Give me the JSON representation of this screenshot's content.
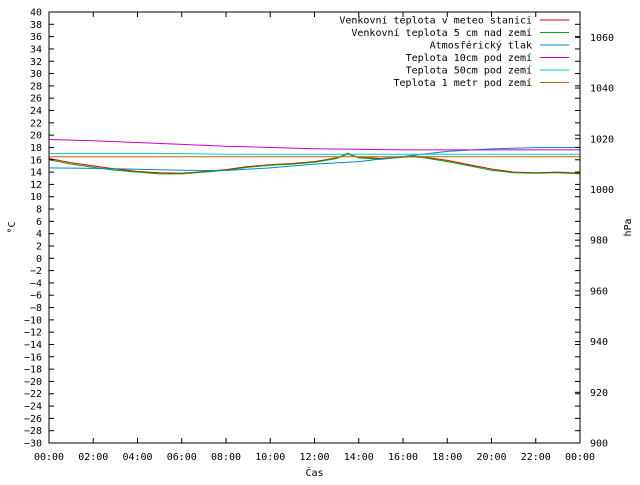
{
  "chart_data": {
    "type": "line",
    "title": "",
    "xlabel": "Čas",
    "ylabel": "°C",
    "y2label": "hPa",
    "grid": false,
    "legend_position": "top-right",
    "x_ticks": [
      "00:00",
      "02:00",
      "04:00",
      "06:00",
      "08:00",
      "10:00",
      "12:00",
      "14:00",
      "16:00",
      "18:00",
      "20:00",
      "22:00",
      "00:00"
    ],
    "x_range_hours": [
      0,
      24
    ],
    "ylim": [
      -30,
      40
    ],
    "y_ticks": [
      40,
      38,
      36,
      34,
      32,
      30,
      28,
      26,
      24,
      22,
      20,
      18,
      16,
      14,
      12,
      10,
      8,
      6,
      4,
      2,
      0,
      -2,
      -4,
      -6,
      -8,
      -10,
      -12,
      -14,
      -16,
      -18,
      -20,
      -22,
      -24,
      -26,
      -28,
      -30
    ],
    "y2lim": [
      900,
      1070
    ],
    "y2_ticks": [
      1060,
      1040,
      1020,
      1000,
      980,
      960,
      940,
      920,
      900
    ],
    "series": [
      {
        "name": "Venkovní teplota v meteo stanici",
        "axis": "y",
        "color": "#dd0000",
        "x": [
          0,
          1,
          2,
          3,
          4,
          5,
          6,
          7,
          8,
          9,
          10,
          11,
          12,
          13,
          13.5,
          14,
          15,
          16,
          16.5,
          17,
          18,
          19,
          20,
          21,
          22,
          23,
          24
        ],
        "y": [
          16.2,
          15.5,
          15.0,
          14.5,
          14.1,
          13.9,
          13.8,
          14.1,
          14.4,
          14.9,
          15.2,
          15.4,
          15.7,
          16.3,
          16.9,
          16.4,
          16.2,
          16.5,
          16.6,
          16.4,
          15.9,
          15.2,
          14.5,
          14.0,
          13.9,
          14.0,
          13.8
        ]
      },
      {
        "name": "Venkovní teplota 5 cm nad zemí",
        "axis": "y",
        "color": "#00aa00",
        "x": [
          0,
          1,
          2,
          3,
          4,
          5,
          6,
          7,
          8,
          9,
          10,
          11,
          12,
          13,
          13.5,
          14,
          15,
          16,
          16.5,
          17,
          18,
          19,
          20,
          21,
          22,
          23,
          24
        ],
        "y": [
          16.0,
          15.3,
          14.8,
          14.3,
          14.0,
          13.7,
          13.7,
          14.0,
          14.3,
          14.8,
          15.1,
          15.3,
          15.6,
          16.2,
          17.1,
          16.3,
          16.1,
          16.4,
          16.5,
          16.3,
          15.7,
          15.0,
          14.3,
          13.9,
          13.8,
          13.9,
          13.7
        ]
      },
      {
        "name": "Atmosférický tlak",
        "axis": "y2",
        "color": "#0088cc",
        "x": [
          0,
          2,
          4,
          6,
          8,
          10,
          12,
          14,
          16,
          18,
          20,
          22,
          24
        ],
        "y": [
          1008.5,
          1008.3,
          1008.0,
          1007.6,
          1007.5,
          1008.5,
          1010.0,
          1011.0,
          1013.0,
          1015.0,
          1016.0,
          1016.5,
          1016.6
        ]
      },
      {
        "name": "Teplota 10cm pod zemí",
        "axis": "y",
        "color": "#cc00cc",
        "x": [
          0,
          2,
          4,
          6,
          8,
          10,
          12,
          14,
          16,
          18,
          20,
          22,
          24
        ],
        "y": [
          19.3,
          19.1,
          18.8,
          18.5,
          18.2,
          18.0,
          17.8,
          17.7,
          17.6,
          17.6,
          17.6,
          17.6,
          17.6
        ]
      },
      {
        "name": "Teplota 50cm pod zemí",
        "axis": "y",
        "color": "#00cccc",
        "x": [
          0,
          2,
          4,
          6,
          8,
          10,
          12,
          14,
          16,
          18,
          20,
          22,
          24
        ],
        "y": [
          17.0,
          17.0,
          17.0,
          17.0,
          16.9,
          16.9,
          16.9,
          16.9,
          16.9,
          16.9,
          16.9,
          16.9,
          16.9
        ]
      },
      {
        "name": "Teplota 1 metr pod zemí",
        "axis": "y",
        "color": "#bb6600",
        "x": [
          0,
          2,
          4,
          6,
          8,
          10,
          12,
          14,
          16,
          18,
          20,
          22,
          24
        ],
        "y": [
          16.5,
          16.5,
          16.5,
          16.5,
          16.5,
          16.5,
          16.5,
          16.5,
          16.5,
          16.5,
          16.5,
          16.5,
          16.5
        ]
      }
    ]
  }
}
